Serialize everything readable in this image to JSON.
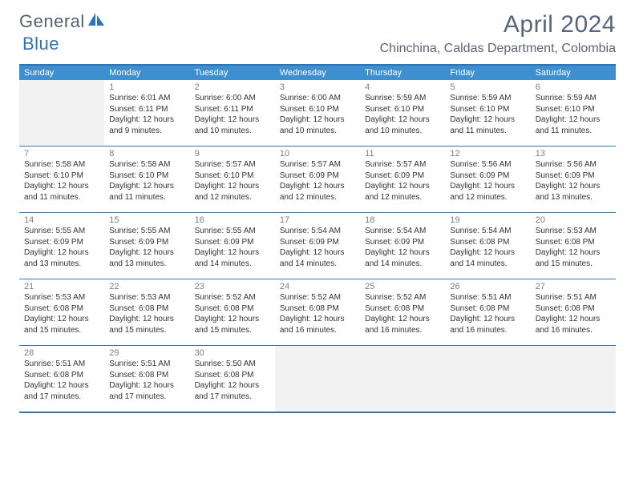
{
  "logo": {
    "general": "General",
    "blue": "Blue"
  },
  "title": "April 2024",
  "location": "Chinchina, Caldas Department, Colombia",
  "weekdays": [
    "Sunday",
    "Monday",
    "Tuesday",
    "Wednesday",
    "Thursday",
    "Friday",
    "Saturday"
  ],
  "colors": {
    "header_bar": "#3e8fd0",
    "border": "#2f74b5",
    "empty_bg": "#f2f2f2",
    "title_text": "#5b657a",
    "logo_general": "#555f6e",
    "logo_blue": "#2f74b5"
  },
  "weeks": [
    [
      null,
      {
        "n": "1",
        "sr": "Sunrise: 6:01 AM",
        "ss": "Sunset: 6:11 PM",
        "d1": "Daylight: 12 hours",
        "d2": "and 9 minutes."
      },
      {
        "n": "2",
        "sr": "Sunrise: 6:00 AM",
        "ss": "Sunset: 6:11 PM",
        "d1": "Daylight: 12 hours",
        "d2": "and 10 minutes."
      },
      {
        "n": "3",
        "sr": "Sunrise: 6:00 AM",
        "ss": "Sunset: 6:10 PM",
        "d1": "Daylight: 12 hours",
        "d2": "and 10 minutes."
      },
      {
        "n": "4",
        "sr": "Sunrise: 5:59 AM",
        "ss": "Sunset: 6:10 PM",
        "d1": "Daylight: 12 hours",
        "d2": "and 10 minutes."
      },
      {
        "n": "5",
        "sr": "Sunrise: 5:59 AM",
        "ss": "Sunset: 6:10 PM",
        "d1": "Daylight: 12 hours",
        "d2": "and 11 minutes."
      },
      {
        "n": "6",
        "sr": "Sunrise: 5:59 AM",
        "ss": "Sunset: 6:10 PM",
        "d1": "Daylight: 12 hours",
        "d2": "and 11 minutes."
      }
    ],
    [
      {
        "n": "7",
        "sr": "Sunrise: 5:58 AM",
        "ss": "Sunset: 6:10 PM",
        "d1": "Daylight: 12 hours",
        "d2": "and 11 minutes."
      },
      {
        "n": "8",
        "sr": "Sunrise: 5:58 AM",
        "ss": "Sunset: 6:10 PM",
        "d1": "Daylight: 12 hours",
        "d2": "and 11 minutes."
      },
      {
        "n": "9",
        "sr": "Sunrise: 5:57 AM",
        "ss": "Sunset: 6:10 PM",
        "d1": "Daylight: 12 hours",
        "d2": "and 12 minutes."
      },
      {
        "n": "10",
        "sr": "Sunrise: 5:57 AM",
        "ss": "Sunset: 6:09 PM",
        "d1": "Daylight: 12 hours",
        "d2": "and 12 minutes."
      },
      {
        "n": "11",
        "sr": "Sunrise: 5:57 AM",
        "ss": "Sunset: 6:09 PM",
        "d1": "Daylight: 12 hours",
        "d2": "and 12 minutes."
      },
      {
        "n": "12",
        "sr": "Sunrise: 5:56 AM",
        "ss": "Sunset: 6:09 PM",
        "d1": "Daylight: 12 hours",
        "d2": "and 12 minutes."
      },
      {
        "n": "13",
        "sr": "Sunrise: 5:56 AM",
        "ss": "Sunset: 6:09 PM",
        "d1": "Daylight: 12 hours",
        "d2": "and 13 minutes."
      }
    ],
    [
      {
        "n": "14",
        "sr": "Sunrise: 5:55 AM",
        "ss": "Sunset: 6:09 PM",
        "d1": "Daylight: 12 hours",
        "d2": "and 13 minutes."
      },
      {
        "n": "15",
        "sr": "Sunrise: 5:55 AM",
        "ss": "Sunset: 6:09 PM",
        "d1": "Daylight: 12 hours",
        "d2": "and 13 minutes."
      },
      {
        "n": "16",
        "sr": "Sunrise: 5:55 AM",
        "ss": "Sunset: 6:09 PM",
        "d1": "Daylight: 12 hours",
        "d2": "and 14 minutes."
      },
      {
        "n": "17",
        "sr": "Sunrise: 5:54 AM",
        "ss": "Sunset: 6:09 PM",
        "d1": "Daylight: 12 hours",
        "d2": "and 14 minutes."
      },
      {
        "n": "18",
        "sr": "Sunrise: 5:54 AM",
        "ss": "Sunset: 6:09 PM",
        "d1": "Daylight: 12 hours",
        "d2": "and 14 minutes."
      },
      {
        "n": "19",
        "sr": "Sunrise: 5:54 AM",
        "ss": "Sunset: 6:08 PM",
        "d1": "Daylight: 12 hours",
        "d2": "and 14 minutes."
      },
      {
        "n": "20",
        "sr": "Sunrise: 5:53 AM",
        "ss": "Sunset: 6:08 PM",
        "d1": "Daylight: 12 hours",
        "d2": "and 15 minutes."
      }
    ],
    [
      {
        "n": "21",
        "sr": "Sunrise: 5:53 AM",
        "ss": "Sunset: 6:08 PM",
        "d1": "Daylight: 12 hours",
        "d2": "and 15 minutes."
      },
      {
        "n": "22",
        "sr": "Sunrise: 5:53 AM",
        "ss": "Sunset: 6:08 PM",
        "d1": "Daylight: 12 hours",
        "d2": "and 15 minutes."
      },
      {
        "n": "23",
        "sr": "Sunrise: 5:52 AM",
        "ss": "Sunset: 6:08 PM",
        "d1": "Daylight: 12 hours",
        "d2": "and 15 minutes."
      },
      {
        "n": "24",
        "sr": "Sunrise: 5:52 AM",
        "ss": "Sunset: 6:08 PM",
        "d1": "Daylight: 12 hours",
        "d2": "and 16 minutes."
      },
      {
        "n": "25",
        "sr": "Sunrise: 5:52 AM",
        "ss": "Sunset: 6:08 PM",
        "d1": "Daylight: 12 hours",
        "d2": "and 16 minutes."
      },
      {
        "n": "26",
        "sr": "Sunrise: 5:51 AM",
        "ss": "Sunset: 6:08 PM",
        "d1": "Daylight: 12 hours",
        "d2": "and 16 minutes."
      },
      {
        "n": "27",
        "sr": "Sunrise: 5:51 AM",
        "ss": "Sunset: 6:08 PM",
        "d1": "Daylight: 12 hours",
        "d2": "and 16 minutes."
      }
    ],
    [
      {
        "n": "28",
        "sr": "Sunrise: 5:51 AM",
        "ss": "Sunset: 6:08 PM",
        "d1": "Daylight: 12 hours",
        "d2": "and 17 minutes."
      },
      {
        "n": "29",
        "sr": "Sunrise: 5:51 AM",
        "ss": "Sunset: 6:08 PM",
        "d1": "Daylight: 12 hours",
        "d2": "and 17 minutes."
      },
      {
        "n": "30",
        "sr": "Sunrise: 5:50 AM",
        "ss": "Sunset: 6:08 PM",
        "d1": "Daylight: 12 hours",
        "d2": "and 17 minutes."
      },
      null,
      null,
      null,
      null
    ]
  ]
}
